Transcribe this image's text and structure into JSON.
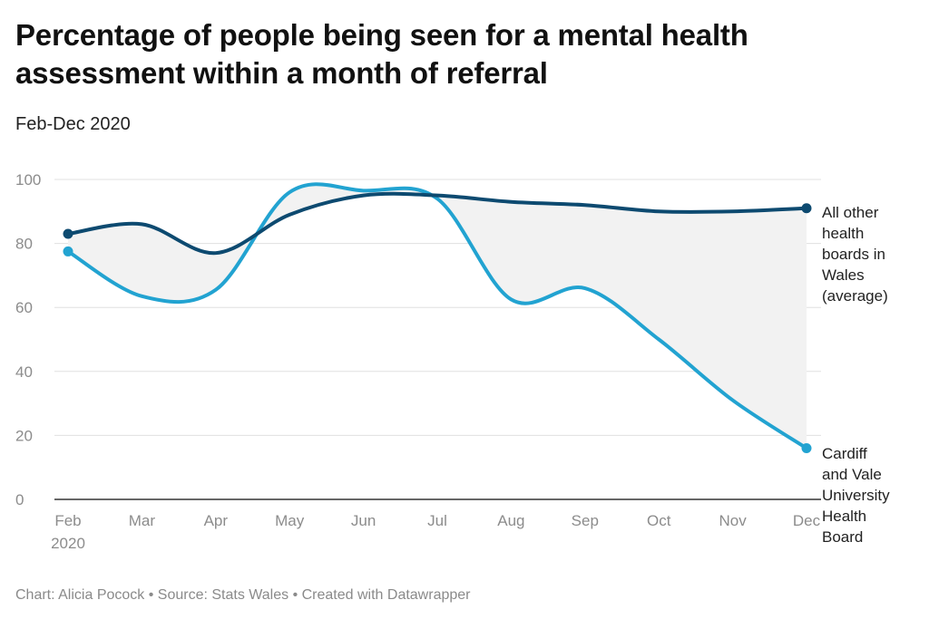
{
  "header": {
    "title": "Percentage of people being seen for a mental health assessment within a month of referral",
    "subtitle": "Feb-Dec 2020"
  },
  "footer": {
    "credit": "Chart: Alicia Pocock • Source: Stats Wales • Created with Datawrapper"
  },
  "colors": {
    "others": "#0d4a70",
    "cardiff": "#22a3d1",
    "area": "#f2f2f2",
    "grid": "#e0e0e0",
    "axis": "#333333"
  },
  "chart_data": {
    "type": "line",
    "x": [
      "Feb",
      "Mar",
      "Apr",
      "May",
      "Jun",
      "Jul",
      "Aug",
      "Sep",
      "Oct",
      "Nov",
      "Dec"
    ],
    "x_year_label": "2020",
    "ylim": [
      0,
      100
    ],
    "yticks": [
      0,
      20,
      40,
      60,
      80,
      100
    ],
    "grid": true,
    "area_between_series": true,
    "series": [
      {
        "name": "All other health boards in Wales (average)",
        "label_lines": [
          "All other",
          "health",
          "boards in",
          "Wales",
          "(average)"
        ],
        "values": [
          83,
          86,
          77,
          89,
          95,
          95,
          93,
          92,
          90,
          90,
          91
        ]
      },
      {
        "name": "Cardiff and Vale University Health Board",
        "label_lines": [
          "Cardiff",
          "and Vale",
          "University",
          "Health",
          "Board"
        ],
        "values": [
          77.5,
          63.5,
          65.5,
          96,
          96.5,
          94,
          62.5,
          66,
          50,
          31,
          16
        ]
      }
    ]
  }
}
